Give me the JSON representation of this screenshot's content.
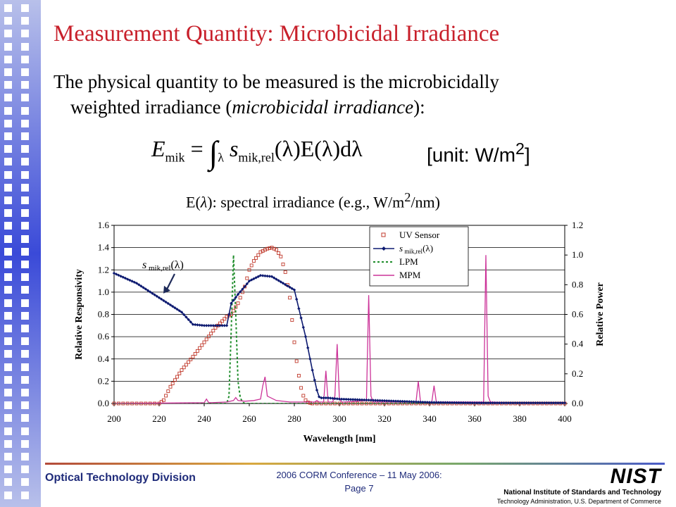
{
  "slide": {
    "title": "Measurement Quantity: Microbicidal Irradiance",
    "bullet_line1": "The physical quantity to be measured is the microbicidally",
    "bullet_line2_pre": "weighted irradiance (",
    "bullet_line2_em": "microbicidal irradiance",
    "bullet_line2_post": "):",
    "formula": {
      "E": "E",
      "sub_mik": "mik",
      "eq": " = ",
      "integral": "∫",
      "lambda": "λ",
      "s": " s",
      "sub_mikrel": "mik,rel",
      "rest": "(λ)E(λ)dλ"
    },
    "unit_text": "[unit: W/m",
    "unit_sup": "2",
    "unit_close": "]",
    "spectral_pre": "E(",
    "spectral_lambda": "λ",
    "spectral_mid": "): spectral irradiance (e.g., W/m",
    "spectral_sup": "2",
    "spectral_post": "/nm)"
  },
  "footer": {
    "division": "Optical Technology Division",
    "conference": "2006 CORM Conference – 11 May 2006:",
    "page": "Page 7",
    "nist_logo": "NIST",
    "nist_name": "National Institute of Standards and Technology",
    "nist_sub": "Technology Administration, U.S. Department of Commerce"
  },
  "chart_data": {
    "type": "line",
    "xlabel": "Wavelength [nm]",
    "ylabel_left": "Relative Responsivity",
    "ylabel_right": "Relative Power",
    "xlim": [
      200,
      400
    ],
    "ylim_left": [
      0,
      1.6
    ],
    "ylim_right": [
      0,
      1.2
    ],
    "x_ticks": [
      200,
      220,
      240,
      260,
      280,
      300,
      320,
      340,
      360,
      380,
      400
    ],
    "y_ticks_left": [
      "0.0",
      "0.2",
      "0.4",
      "0.6",
      "0.8",
      "1.0",
      "1.2",
      "1.4",
      "1.6"
    ],
    "y_ticks_right": [
      "0.0",
      "0.2",
      "0.4",
      "0.6",
      "0.8",
      "1.0",
      "1.2"
    ],
    "grid": true,
    "legend_position": "top-right",
    "annotation": {
      "s": "s",
      "sub": " mik,rel",
      "lambda": "(λ)",
      "target_x": 220,
      "target_y": 0.95
    },
    "series": [
      {
        "name": "UV Sensor",
        "axis": "left",
        "color": "#c0392b",
        "style": "square-markers",
        "x": [
          200,
          220,
          222,
          225,
          230,
          235,
          240,
          245,
          250,
          252,
          255,
          258,
          260,
          262,
          265,
          268,
          270,
          272,
          274,
          276,
          278,
          279,
          280,
          281,
          282,
          283,
          284,
          285,
          286,
          288,
          290,
          295,
          300,
          310,
          320,
          340,
          360,
          380,
          400
        ],
        "y": [
          0,
          0,
          0.03,
          0.15,
          0.3,
          0.42,
          0.55,
          0.68,
          0.78,
          0.8,
          0.9,
          1.05,
          1.2,
          1.28,
          1.36,
          1.39,
          1.4,
          1.38,
          1.32,
          1.18,
          0.95,
          0.75,
          0.55,
          0.38,
          0.25,
          0.14,
          0.07,
          0.03,
          0.01,
          0,
          0,
          0,
          0,
          0,
          0,
          0,
          0,
          0,
          0
        ]
      },
      {
        "name": "LPM",
        "axis": "right",
        "color": "#1e8c2a",
        "style": "dashed",
        "x": [
          200,
          250,
          251,
          252,
          253,
          254,
          255,
          256,
          257,
          258,
          400
        ],
        "y": [
          0,
          0,
          0.05,
          0.5,
          1.0,
          0.6,
          0.15,
          0.04,
          0.01,
          0,
          0
        ]
      },
      {
        "name": "MPM",
        "axis": "right",
        "color": "#cc3399",
        "style": "line",
        "x": [
          200,
          240,
          241,
          242,
          243,
          250,
          253,
          254,
          255,
          258,
          262,
          265,
          266,
          267,
          268,
          272,
          278,
          280,
          289,
          290,
          291,
          293,
          294,
          295,
          297,
          298,
          299,
          300,
          301,
          302,
          312,
          313,
          314,
          315,
          316,
          334,
          335,
          336,
          341,
          342,
          343,
          364,
          365,
          366,
          367,
          368,
          380,
          400
        ],
        "y": [
          0,
          0.005,
          0.03,
          0.005,
          0.005,
          0.01,
          0.02,
          0.04,
          0.02,
          0.015,
          0.02,
          0.03,
          0.12,
          0.18,
          0.05,
          0.02,
          0.01,
          0.01,
          0.01,
          0.02,
          0.01,
          0.01,
          0.22,
          0.01,
          0.01,
          0.05,
          0.4,
          0.03,
          0.01,
          0.01,
          0.02,
          0.73,
          0.05,
          0.01,
          0.01,
          0.01,
          0.15,
          0.01,
          0.01,
          0.12,
          0.01,
          0.01,
          1.0,
          0.05,
          0.01,
          0.01,
          0,
          0
        ]
      },
      {
        "name": "s mik,rel(λ)",
        "legend_lambda": "(λ)",
        "axis": "left",
        "color": "#0d1a70",
        "style": "line-markers",
        "x": [
          200,
          210,
          220,
          230,
          235,
          240,
          245,
          250,
          252,
          255,
          258,
          260,
          265,
          270,
          275,
          280,
          285,
          288,
          290,
          291,
          292,
          293,
          295,
          300,
          320,
          340,
          360,
          370,
          380,
          400
        ],
        "y": [
          1.17,
          1.08,
          0.95,
          0.82,
          0.71,
          0.7,
          0.7,
          0.7,
          0.9,
          0.98,
          1.05,
          1.1,
          1.15,
          1.14,
          1.08,
          1.02,
          0.6,
          0.3,
          0.12,
          0.06,
          0.05,
          0.05,
          0.05,
          0.04,
          0.025,
          0.01,
          0.005,
          0.005,
          0.005,
          0.005
        ]
      }
    ]
  }
}
